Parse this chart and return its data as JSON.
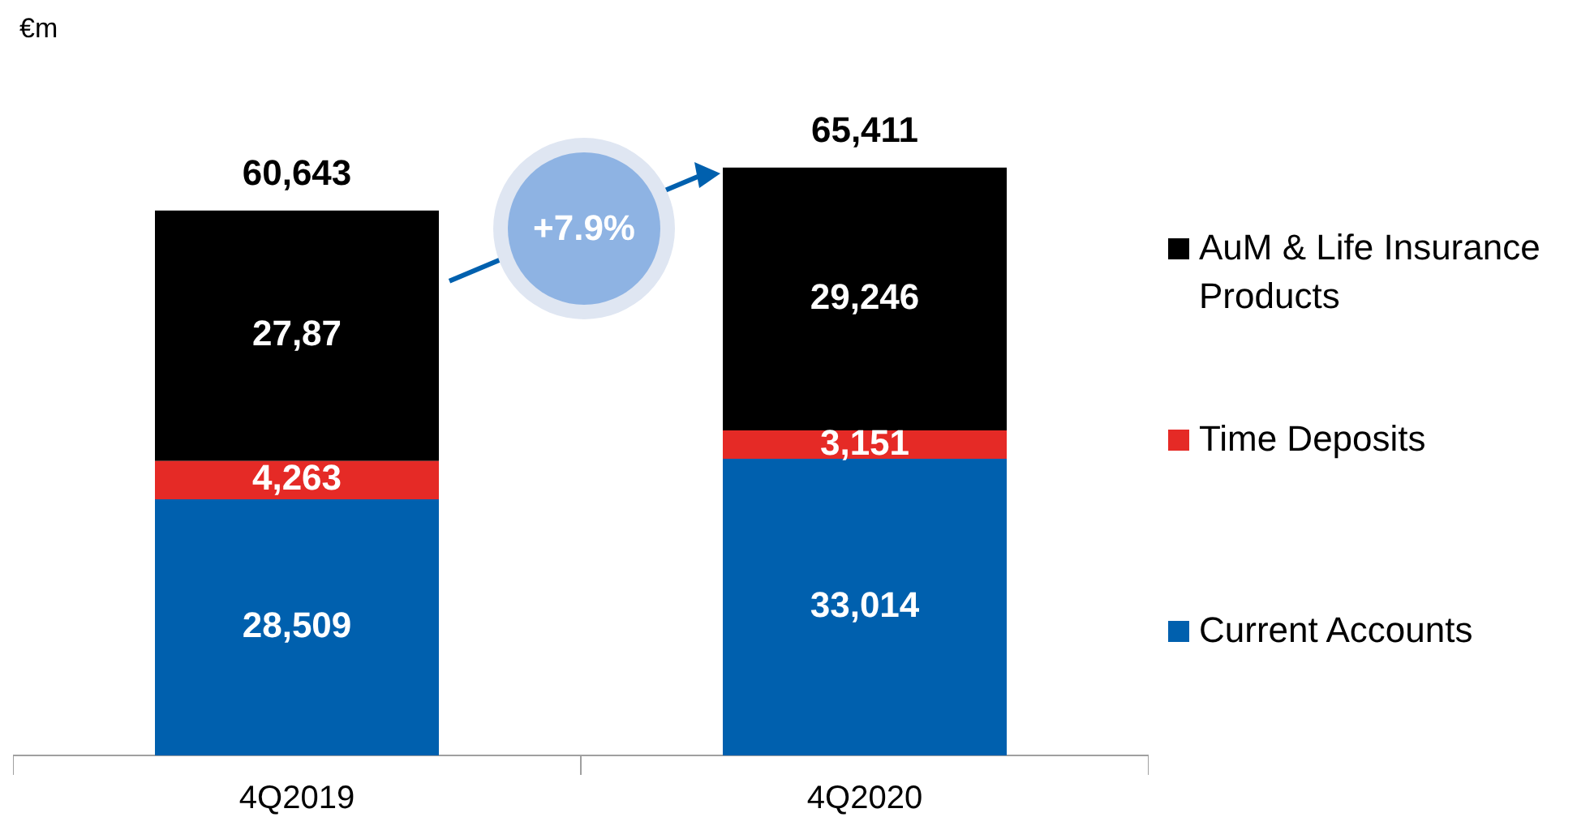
{
  "chart_data": {
    "type": "bar",
    "ylabel": "€m",
    "categories": [
      "4Q2019",
      "4Q2020"
    ],
    "stacked": true,
    "tick_labels": "x",
    "grid": false,
    "legend": "right",
    "series": [
      {
        "name": "Current Accounts",
        "color": "#0060ae",
        "values": [
          28509,
          33014
        ],
        "value_labels": [
          "28,509",
          "33,014"
        ]
      },
      {
        "name": "Time Deposits",
        "color": "#e52a26",
        "values": [
          4263,
          3151
        ],
        "value_labels": [
          "4,263",
          "3,151"
        ]
      },
      {
        "name": "AuM & Life Insurance Products",
        "color": "#000000",
        "values": [
          27871,
          29246
        ],
        "value_labels": [
          null,
          "29,246"
        ]
      }
    ],
    "totals": [
      "60,643",
      "65,411"
    ],
    "annotations": [
      "+7.9%",
      "27,87"
    ]
  }
}
